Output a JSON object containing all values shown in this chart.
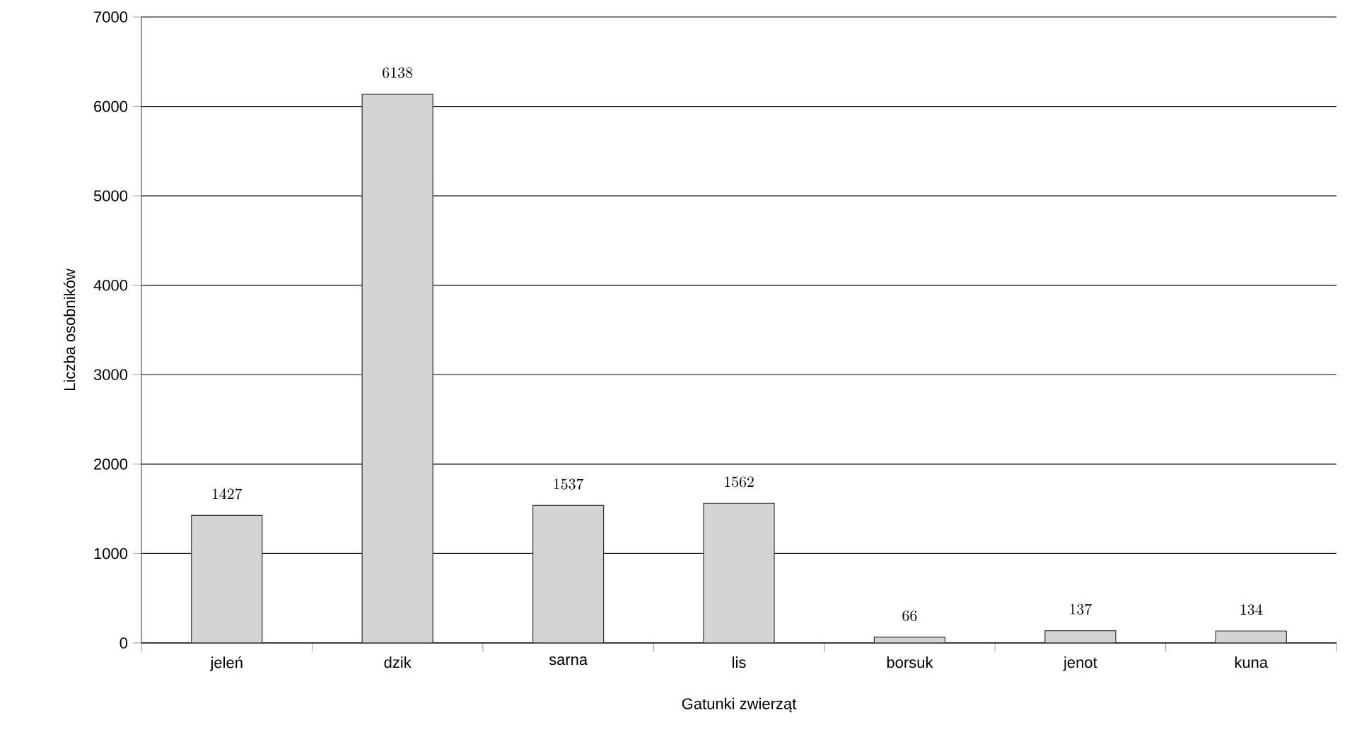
{
  "chart_data": {
    "type": "bar",
    "xlabel": "Gatunki zwierząt",
    "ylabel": "Liczba osobników",
    "categories": [
      "jeleń",
      "dzik",
      "sarna",
      "lis",
      "borsuk",
      "jenot",
      "kuna"
    ],
    "values": [
      1427,
      6138,
      1537,
      1562,
      66,
      137,
      134
    ],
    "color": "#d4d4d4",
    "ylim": [
      0,
      7000
    ],
    "yticks": [
      0,
      1000,
      2000,
      3000,
      4000,
      5000,
      6000,
      7000
    ],
    "grid": "y",
    "data_labels": true
  }
}
